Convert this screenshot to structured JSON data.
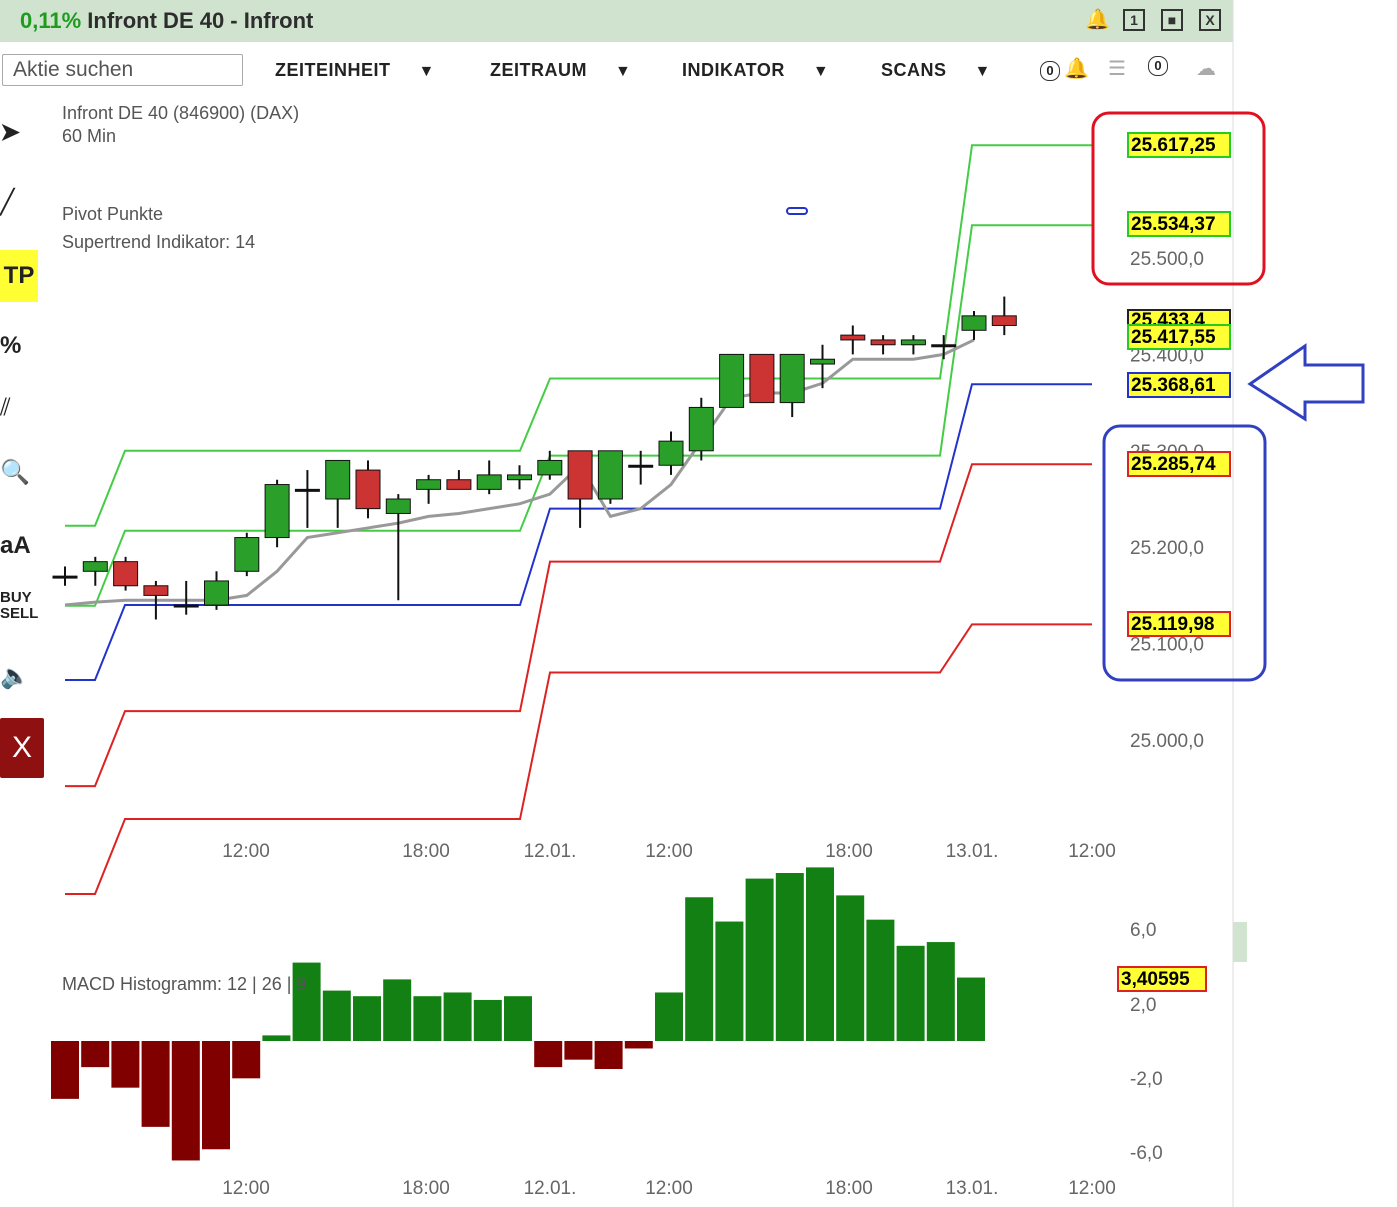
{
  "window": {
    "change_pct": "0,11%",
    "title": "Infront DE 40 - Infront",
    "icons": [
      "bell-icon",
      "window-1-icon",
      "restore-icon",
      "close-icon"
    ]
  },
  "toolbar": {
    "search_placeholder": "Aktie suchen",
    "menus": [
      "ZEITEINHEIT",
      "ZEITRAUM",
      "INDIKATOR",
      "SCANS"
    ],
    "badge_left": "0",
    "badge_right": "0"
  },
  "sidebar": {
    "tp_label": "TP",
    "pct_label": "%",
    "font_label": "aA",
    "buy_label": "BUY",
    "sell_label": "SELL",
    "close_label": "X"
  },
  "chart_info": {
    "instrument": "Infront DE 40 (846900) (DAX)",
    "interval": "60 Min",
    "indicator1": "Pivot Punkte",
    "indicator2": "Supertrend Indikator: 14",
    "macd_label": "MACD Histogramm: 12 | 26 | 9"
  },
  "price_labels": {
    "p1": "25.617,25",
    "p2": "25.534,37",
    "p3": "25.433,4",
    "p4": "25.417,55",
    "p5": "25.368,61",
    "p6": "25.285,74",
    "p7": "25.119,98"
  },
  "macd_value": "3,40595",
  "colors": {
    "up": "#2aa02a",
    "down": "#cc3333",
    "pivot_green": "#44cc44",
    "pivot_red": "#dd2222",
    "pivot_blue": "#2233cc",
    "supertrend": "#999999",
    "macd_pos": "#128012",
    "macd_neg": "#800000",
    "red_frame": "#e01020",
    "blue_frame": "#3040c0"
  },
  "chart_data": [
    {
      "type": "candlestick",
      "y_axis_ticks": [
        "25.500,0",
        "25.400,0",
        "25.300,0",
        "25.200,0",
        "25.100,0",
        "25.000,0"
      ],
      "x_axis_ticks": [
        "12:00",
        "18:00",
        "12.01.",
        "12:00",
        "18:00",
        "13.01.",
        "12:00"
      ],
      "ylim": [
        24950,
        25680
      ],
      "candles": [
        {
          "o": 25170,
          "h": 25180,
          "l": 25160,
          "c": 25170
        },
        {
          "o": 25175,
          "h": 25190,
          "l": 25160,
          "c": 25185
        },
        {
          "o": 25185,
          "h": 25190,
          "l": 25155,
          "c": 25160
        },
        {
          "o": 25160,
          "h": 25165,
          "l": 25125,
          "c": 25150
        },
        {
          "o": 25140,
          "h": 25165,
          "l": 25130,
          "c": 25140
        },
        {
          "o": 25140,
          "h": 25175,
          "l": 25135,
          "c": 25165
        },
        {
          "o": 25175,
          "h": 25215,
          "l": 25170,
          "c": 25210
        },
        {
          "o": 25210,
          "h": 25270,
          "l": 25200,
          "c": 25265
        },
        {
          "o": 25260,
          "h": 25280,
          "l": 25220,
          "c": 25260
        },
        {
          "o": 25250,
          "h": 25290,
          "l": 25220,
          "c": 25290
        },
        {
          "o": 25280,
          "h": 25290,
          "l": 25230,
          "c": 25240
        },
        {
          "o": 25235,
          "h": 25255,
          "l": 25145,
          "c": 25250
        },
        {
          "o": 25260,
          "h": 25275,
          "l": 25245,
          "c": 25270
        },
        {
          "o": 25270,
          "h": 25280,
          "l": 25260,
          "c": 25260
        },
        {
          "o": 25260,
          "h": 25290,
          "l": 25255,
          "c": 25275
        },
        {
          "o": 25270,
          "h": 25285,
          "l": 25260,
          "c": 25275
        },
        {
          "o": 25275,
          "h": 25300,
          "l": 25270,
          "c": 25290
        },
        {
          "o": 25300,
          "h": 25300,
          "l": 25220,
          "c": 25250
        },
        {
          "o": 25250,
          "h": 25300,
          "l": 25245,
          "c": 25300
        },
        {
          "o": 25285,
          "h": 25300,
          "l": 25265,
          "c": 25285
        },
        {
          "o": 25285,
          "h": 25320,
          "l": 25275,
          "c": 25310
        },
        {
          "o": 25300,
          "h": 25355,
          "l": 25290,
          "c": 25345
        },
        {
          "o": 25345,
          "h": 25400,
          "l": 25345,
          "c": 25400
        },
        {
          "o": 25400,
          "h": 25400,
          "l": 25355,
          "c": 25350
        },
        {
          "o": 25350,
          "h": 25400,
          "l": 25335,
          "c": 25400
        },
        {
          "o": 25390,
          "h": 25410,
          "l": 25365,
          "c": 25395
        },
        {
          "o": 25420,
          "h": 25430,
          "l": 25400,
          "c": 25415
        },
        {
          "o": 25415,
          "h": 25420,
          "l": 25400,
          "c": 25410
        },
        {
          "o": 25410,
          "h": 25420,
          "l": 25400,
          "c": 25415
        },
        {
          "o": 25410,
          "h": 25420,
          "l": 25395,
          "c": 25410
        },
        {
          "o": 25425,
          "h": 25445,
          "l": 25415,
          "c": 25440
        },
        {
          "o": 25440,
          "h": 25460,
          "l": 25420,
          "c": 25430
        }
      ],
      "pivot_levels": {
        "green_top": [
          25290,
          25370,
          25617
        ],
        "green_mid": [
          25210,
          25290,
          25534
        ],
        "blue": [
          25150,
          25240,
          25369
        ],
        "red_mid": [
          25060,
          25180,
          25286
        ],
        "red_bot": [
          24950,
          25070,
          25120
        ]
      }
    },
    {
      "type": "bar",
      "title": "MACD Histogramm: 12 | 26 | 9",
      "y_axis_ticks": [
        "6,0",
        "2,0",
        "-2,0",
        "-6,0"
      ],
      "x_axis_ticks": [
        "12:00",
        "18:00",
        "12.01.",
        "12:00",
        "18:00",
        "13.01.",
        "12:00"
      ],
      "values": [
        -3.1,
        -1.4,
        -2.5,
        -4.6,
        -6.4,
        -5.8,
        -2.0,
        0.3,
        4.2,
        2.7,
        2.4,
        3.3,
        2.4,
        2.6,
        2.2,
        2.4,
        -1.4,
        -1.0,
        -1.5,
        -0.4,
        2.6,
        7.7,
        6.4,
        8.7,
        9.0,
        9.3,
        7.8,
        6.5,
        5.1,
        5.3,
        3.4
      ],
      "ylim": [
        -6.5,
        9.5
      ]
    }
  ]
}
